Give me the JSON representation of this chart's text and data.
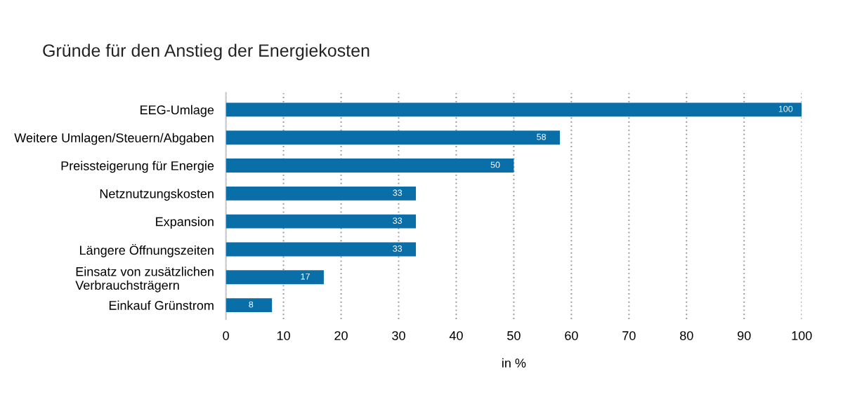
{
  "chart_data": {
    "type": "bar",
    "orientation": "horizontal",
    "title": "Gründe für den Anstieg der Energiekosten",
    "categories": [
      "EEG-Umlage",
      "Weitere Umlagen/Steuern/Abgaben",
      "Preissteigerung für Energie",
      "Netznutzungskosten",
      "Expansion",
      "Längere Öffnungszeiten",
      "Einsatz von zusätzlichen\nVerbrauchsträgern",
      "Einkauf Grünstrom"
    ],
    "values": [
      100,
      58,
      50,
      33,
      33,
      33,
      17,
      8
    ],
    "color": "#0a6ea8",
    "xlim": [
      0,
      100
    ],
    "xticks": [
      0,
      10,
      20,
      30,
      40,
      50,
      60,
      70,
      80,
      90,
      100
    ],
    "xlabel": "in %",
    "grid": "x",
    "data_labels": true
  }
}
